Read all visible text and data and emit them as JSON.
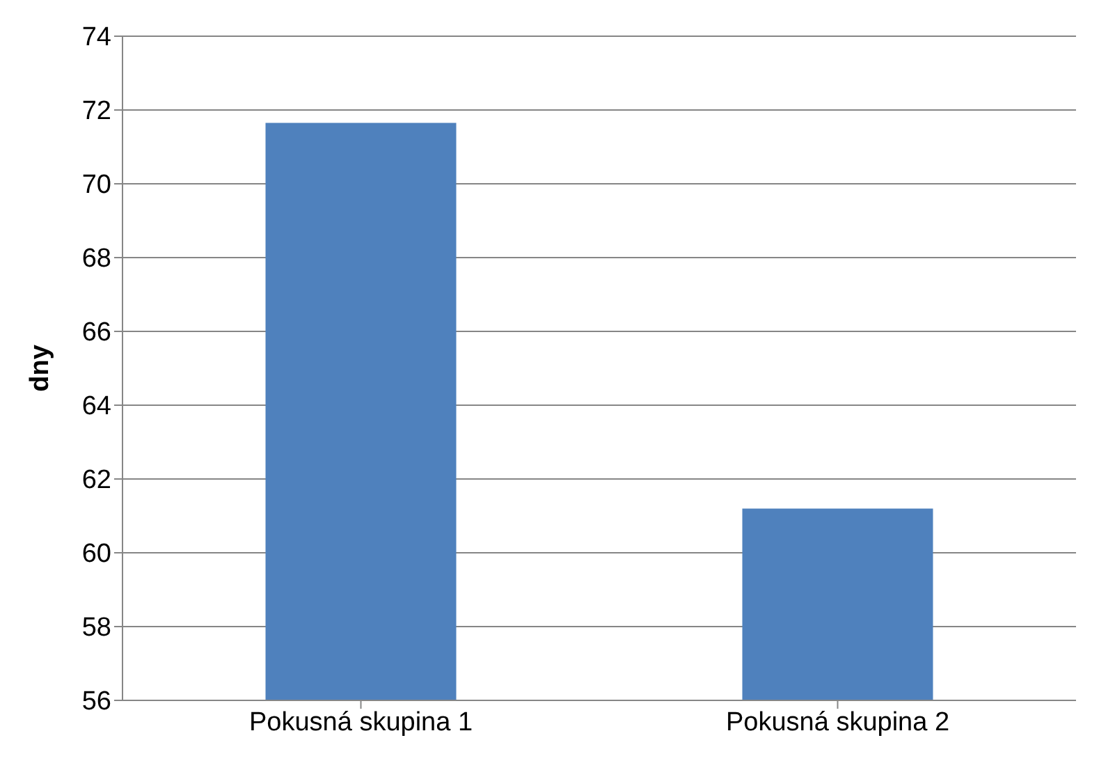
{
  "chart_data": {
    "type": "bar",
    "ylabel": "dny",
    "categories": [
      "Pokusná skupina 1",
      "Pokusná skupina 2"
    ],
    "values": [
      71.65,
      61.2
    ],
    "color": "#4f81bd",
    "ylim": [
      56,
      74
    ],
    "yticks": [
      56,
      58,
      60,
      62,
      64,
      66,
      68,
      70,
      72,
      74
    ],
    "grid": "y",
    "legend": false
  }
}
